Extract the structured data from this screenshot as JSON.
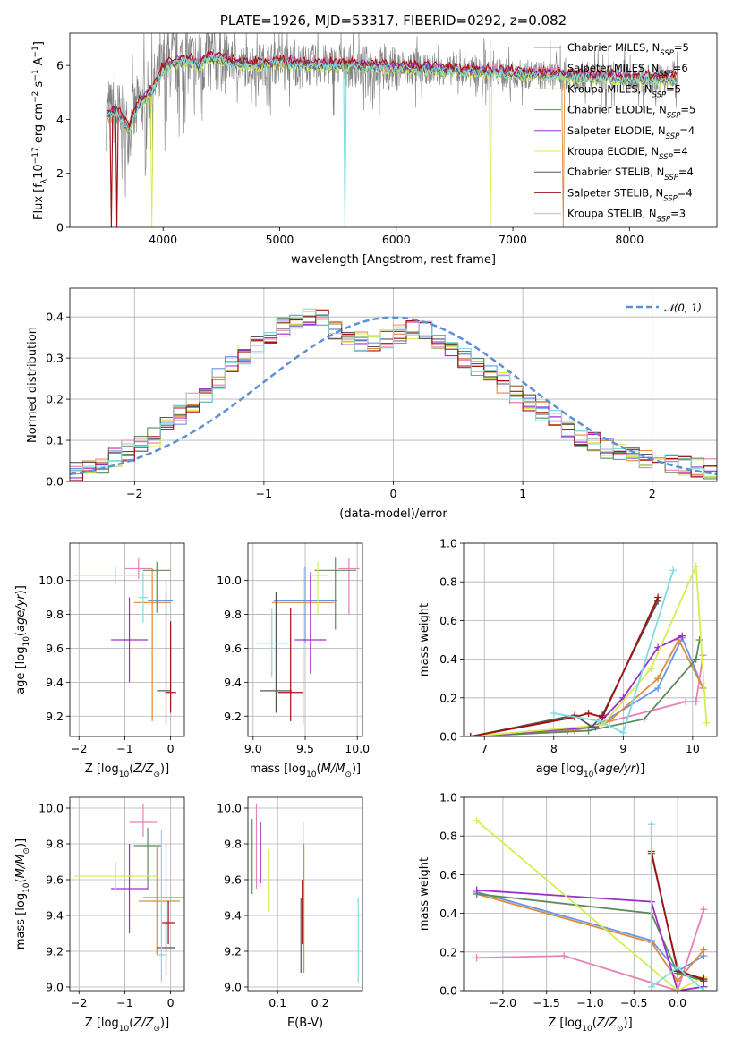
{
  "colors": {
    "blue": "#6495ed",
    "pink": "#e77fb8",
    "orange": "#e08a3c",
    "green": "#5e8a5e",
    "purple": "#9b30c9",
    "yellow": "#d6ed4f",
    "gray": "#555555",
    "red": "#a31010",
    "cyan": "#7fdde0",
    "spectrum": "#808080",
    "normal": "#5b8fd9"
  },
  "legend_labels": [
    "Chabrier MILES, N",
    "Salpeter MILES, N",
    "Kroupa MILES, N",
    "Chabrier ELODIE, N",
    "Salpeter ELODIE, N",
    "Kroupa ELODIE, N",
    "Chabrier STELIB, N",
    "Salpeter STELIB, N",
    "Kroupa STELIB, N"
  ],
  "legend_sub": "SSP",
  "legend_counts": [
    "=5",
    "=6",
    "=5",
    "=5",
    "=4",
    "=4",
    "=4",
    "=4",
    "=3"
  ],
  "chart_data": [
    {
      "type": "line",
      "title": "PLATE=1926, MJD=53317, FIBERID=0292, z=0.082",
      "xlabel": "wavelength [Angstrom, rest frame]",
      "ylabel": "Flux [fλ10⁻¹⁷ erg cm⁻² s⁻¹ A⁻¹]",
      "xlim": [
        3200,
        8750
      ],
      "ylim": [
        0,
        7.2
      ],
      "xticks": [
        4000,
        5000,
        6000,
        7000,
        8000
      ],
      "yticks": [
        0,
        2,
        4,
        6
      ],
      "grid": false,
      "legend_position": "right",
      "series_note": "observed spectrum (gray) with nine model fits",
      "continuum": {
        "x": [
          3500,
          3600,
          3700,
          3800,
          3900,
          4000,
          4100,
          4200,
          4300,
          4400,
          4500,
          4700,
          5000,
          5200,
          5500,
          6000,
          6500,
          7000,
          7500,
          8000,
          8400
        ],
        "y": [
          4.1,
          4.3,
          3.6,
          4.6,
          5.0,
          5.9,
          6.1,
          6.2,
          6.0,
          6.3,
          6.2,
          6.0,
          6.1,
          6.0,
          6.0,
          5.9,
          5.8,
          5.7,
          5.6,
          5.5,
          5.5
        ]
      }
    },
    {
      "type": "line",
      "xlabel": "(data-model)/error",
      "ylabel": "Normed distribution",
      "xlim": [
        -2.5,
        2.5
      ],
      "ylim": [
        0,
        0.47
      ],
      "xticks": [
        -2,
        -1,
        0,
        1,
        2
      ],
      "yticks": [
        0.0,
        0.1,
        0.2,
        0.3,
        0.4
      ],
      "grid": true,
      "legend_position": "top-right",
      "legend_label": "𝒩(0, 1)",
      "histogram_bins": 50,
      "histogram_center": [
        0.025,
        0.03,
        0.045,
        0.06,
        0.075,
        0.09,
        0.11,
        0.135,
        0.16,
        0.19,
        0.215,
        0.25,
        0.285,
        0.31,
        0.335,
        0.36,
        0.375,
        0.39,
        0.395,
        0.4,
        0.37,
        0.345,
        0.34,
        0.335,
        0.345,
        0.36,
        0.37,
        0.37,
        0.34,
        0.32,
        0.3,
        0.28,
        0.26,
        0.24,
        0.21,
        0.19,
        0.17,
        0.15,
        0.13,
        0.11,
        0.095,
        0.08,
        0.07,
        0.06,
        0.055,
        0.05,
        0.045,
        0.04,
        0.035,
        0.03
      ]
    },
    {
      "type": "scatter",
      "xlabel": "Z [log₁₀(Z/Z⊙)]",
      "ylabel": "age  [log₁₀(age/yr)]",
      "xlim": [
        -2.2,
        0.3
      ],
      "ylim": [
        9.08,
        10.22
      ],
      "xticks": [
        -2,
        -1,
        0
      ],
      "yticks": [
        9.2,
        9.4,
        9.6,
        9.8,
        10.0
      ],
      "grid": true,
      "points": [
        {
          "c": "blue",
          "x": -0.1,
          "xe": [
            0.4,
            0.15
          ],
          "y": 9.88,
          "ye": [
            0.1,
            0.12
          ]
        },
        {
          "c": "pink",
          "x": -0.7,
          "xe": [
            0.3,
            0.3
          ],
          "y": 10.07,
          "ye": [
            0.06,
            0.06
          ]
        },
        {
          "c": "orange",
          "x": -0.4,
          "xe": [
            0.4,
            0.4
          ],
          "y": 9.87,
          "ye": [
            0.7,
            0.2
          ]
        },
        {
          "c": "green",
          "x": -0.3,
          "xe": [
            0.3,
            0.3
          ],
          "y": 10.06,
          "ye": [
            0.25,
            0.05
          ]
        },
        {
          "c": "purple",
          "x": -0.9,
          "xe": [
            0.4,
            0.4
          ],
          "y": 9.65,
          "ye": [
            0.25,
            0.25
          ]
        },
        {
          "c": "yellow",
          "x": -1.2,
          "xe": [
            0.9,
            0.9
          ],
          "y": 10.03,
          "ye": [
            0.05,
            0.05
          ]
        },
        {
          "c": "gray",
          "x": -0.1,
          "xe": [
            0.2,
            0.1
          ],
          "y": 9.35,
          "ye": [
            0.2,
            0.58
          ]
        },
        {
          "c": "red",
          "x": 0.0,
          "xe": [
            0.12,
            0.12
          ],
          "y": 9.34,
          "ye": [
            0.12,
            0.42
          ]
        },
        {
          "c": "cyan",
          "x": -0.6,
          "xe": [
            0.1,
            0.1
          ],
          "y": 9.9,
          "ye": [
            0.15,
            0.15
          ]
        }
      ]
    },
    {
      "type": "scatter",
      "xlabel": "mass [log₁₀(M/M⊙)]",
      "xlim": [
        8.95,
        10.05
      ],
      "ylim": [
        9.08,
        10.22
      ],
      "xticks": [
        9.0,
        9.5,
        10.0
      ],
      "yticks": [
        9.2,
        9.4,
        9.6,
        9.8,
        10.0
      ],
      "grid": true,
      "points": [
        {
          "c": "blue",
          "x": 9.5,
          "xe": [
            0.3,
            0.3
          ],
          "y": 9.88,
          "ye": [
            0.25,
            0.2
          ]
        },
        {
          "c": "pink",
          "x": 9.92,
          "xe": [
            0.1,
            0.1
          ],
          "y": 10.07,
          "ye": [
            0.27,
            0.06
          ]
        },
        {
          "c": "orange",
          "x": 9.48,
          "xe": [
            0.3,
            0.3
          ],
          "y": 9.87,
          "ye": [
            0.72,
            0.2
          ]
        },
        {
          "c": "green",
          "x": 9.79,
          "xe": [
            0.2,
            0.2
          ],
          "y": 10.06,
          "ye": [
            0.35,
            0.08
          ]
        },
        {
          "c": "purple",
          "x": 9.55,
          "xe": [
            0.15,
            0.15
          ],
          "y": 9.65,
          "ye": [
            0.2,
            0.4
          ]
        },
        {
          "c": "yellow",
          "x": 9.62,
          "xe": [
            0.1,
            0.1
          ],
          "y": 10.03,
          "ye": [
            0.23,
            0.08
          ]
        },
        {
          "c": "gray",
          "x": 9.22,
          "xe": [
            0.15,
            0.15
          ],
          "y": 9.35,
          "ye": [
            0.13,
            0.58
          ]
        },
        {
          "c": "red",
          "x": 9.36,
          "xe": [
            0.12,
            0.12
          ],
          "y": 9.34,
          "ye": [
            0.17,
            0.5
          ]
        },
        {
          "c": "cyan",
          "x": 9.18,
          "xe": [
            0.15,
            0.15
          ],
          "y": 9.63,
          "ye": [
            0.2,
            0.2
          ]
        }
      ]
    },
    {
      "type": "line",
      "xlabel": "age  [log₁₀(age/yr)]",
      "ylabel": "mass weight",
      "xlim": [
        6.7,
        10.35
      ],
      "ylim": [
        0,
        1.0
      ],
      "xticks": [
        7,
        8,
        9,
        10
      ],
      "yticks": [
        0.0,
        0.2,
        0.4,
        0.6,
        0.8,
        1.0
      ],
      "grid": true,
      "series": [
        {
          "c": "blue",
          "x": [
            6.8,
            8.2,
            8.6,
            9.5,
            9.85,
            10.15
          ],
          "y": [
            0.0,
            0.03,
            0.05,
            0.25,
            0.51,
            0.25
          ]
        },
        {
          "c": "pink",
          "x": [
            6.8,
            8.5,
            9.9,
            10.05,
            10.15
          ],
          "y": [
            0.0,
            0.05,
            0.18,
            0.18,
            0.42
          ]
        },
        {
          "c": "orange",
          "x": [
            6.8,
            8.3,
            8.8,
            9.5,
            9.8,
            10.15
          ],
          "y": [
            0.0,
            0.03,
            0.08,
            0.3,
            0.5,
            0.25
          ]
        },
        {
          "c": "green",
          "x": [
            6.8,
            8.5,
            9.3,
            10.05,
            10.1
          ],
          "y": [
            0.0,
            0.03,
            0.09,
            0.4,
            0.5
          ]
        },
        {
          "c": "purple",
          "x": [
            6.8,
            8.6,
            9.0,
            9.5,
            9.85
          ],
          "y": [
            0.0,
            0.05,
            0.2,
            0.46,
            0.52
          ]
        },
        {
          "c": "yellow",
          "x": [
            6.8,
            8.7,
            9.4,
            10.05,
            10.2
          ],
          "y": [
            0.0,
            0.06,
            0.35,
            0.88,
            0.07
          ]
        },
        {
          "c": "gray",
          "x": [
            6.8,
            8.3,
            8.55,
            8.7,
            9.5
          ],
          "y": [
            0.0,
            0.11,
            0.05,
            0.11,
            0.7
          ]
        },
        {
          "c": "red",
          "x": [
            6.8,
            8.3,
            8.5,
            8.7,
            9.5
          ],
          "y": [
            0.0,
            0.1,
            0.12,
            0.1,
            0.72
          ]
        },
        {
          "c": "cyan",
          "x": [
            8.0,
            8.65,
            9.0,
            9.72
          ],
          "y": [
            0.12,
            0.08,
            0.02,
            0.86
          ]
        }
      ]
    },
    {
      "type": "scatter",
      "xlabel": "Z [log₁₀(Z/Z⊙)]",
      "ylabel": "mass [log₁₀(M/M⊙)]",
      "xlim": [
        -2.2,
        0.3
      ],
      "ylim": [
        8.98,
        10.06
      ],
      "xticks": [
        -2,
        -1,
        0
      ],
      "yticks": [
        9.0,
        9.2,
        9.4,
        9.6,
        9.8,
        10.0
      ],
      "grid": true,
      "points": [
        {
          "c": "blue",
          "x": -0.1,
          "xe": [
            0.5,
            0.4
          ],
          "y": 9.5,
          "ye": [
            0.3,
            0.3
          ]
        },
        {
          "c": "pink",
          "x": -0.6,
          "xe": [
            0.3,
            0.3
          ],
          "y": 9.92,
          "ye": [
            0.08,
            0.1
          ]
        },
        {
          "c": "orange",
          "x": -0.3,
          "xe": [
            0.4,
            0.5
          ],
          "y": 9.48,
          "ye": [
            0.3,
            0.3
          ]
        },
        {
          "c": "green",
          "x": -0.5,
          "xe": [
            0.3,
            0.3
          ],
          "y": 9.79,
          "ye": [
            0.25,
            0.1
          ]
        },
        {
          "c": "purple",
          "x": -0.9,
          "xe": [
            0.4,
            0.4
          ],
          "y": 9.55,
          "ye": [
            0.25,
            0.25
          ]
        },
        {
          "c": "yellow",
          "x": -1.2,
          "xe": [
            0.9,
            0.9
          ],
          "y": 9.62,
          "ye": [
            0.08,
            0.08
          ]
        },
        {
          "c": "gray",
          "x": -0.1,
          "xe": [
            0.2,
            0.2
          ],
          "y": 9.22,
          "ye": [
            0.15,
            0.15
          ]
        },
        {
          "c": "red",
          "x": -0.05,
          "xe": [
            0.15,
            0.15
          ],
          "y": 9.36,
          "ye": [
            0.12,
            0.12
          ]
        },
        {
          "c": "cyan",
          "x": -0.2,
          "xe": [
            0.1,
            0.1
          ],
          "y": 9.18,
          "ye": [
            0.15,
            0.7
          ]
        }
      ]
    },
    {
      "type": "scatter",
      "xlabel": "E(B-V)",
      "xlim": [
        0.03,
        0.3
      ],
      "ylim": [
        8.98,
        10.06
      ],
      "xticks": [
        0.1,
        0.2
      ],
      "yticks": [
        9.0,
        9.2,
        9.4,
        9.6,
        9.8,
        10.0
      ],
      "grid": true,
      "points": [
        {
          "c": "blue",
          "x": 0.16,
          "ye": [
            9.28,
            9.92
          ]
        },
        {
          "c": "pink",
          "x": 0.05,
          "ye": [
            9.55,
            10.02
          ]
        },
        {
          "c": "orange",
          "x": 0.162,
          "ye": [
            9.08,
            9.8
          ]
        },
        {
          "c": "green",
          "x": 0.04,
          "ye": [
            9.52,
            9.94
          ]
        },
        {
          "c": "purple",
          "x": 0.06,
          "ye": [
            9.58,
            9.92
          ]
        },
        {
          "c": "yellow",
          "x": 0.08,
          "ye": [
            9.42,
            9.77
          ]
        },
        {
          "c": "gray",
          "x": 0.155,
          "ye": [
            9.08,
            9.5
          ]
        },
        {
          "c": "red",
          "x": 0.158,
          "ye": [
            9.24,
            9.6
          ]
        },
        {
          "c": "cyan",
          "x": 0.29,
          "ye": [
            9.02,
            9.5
          ]
        }
      ]
    },
    {
      "type": "line",
      "xlabel": "Z [log₁₀(Z/Z⊙)]",
      "ylabel": "mass weight",
      "xlim": [
        -2.45,
        0.45
      ],
      "ylim": [
        0,
        1.0
      ],
      "xticks": [
        -2.0,
        -1.5,
        -1.0,
        -0.5,
        0.0
      ],
      "yticks": [
        0.0,
        0.2,
        0.4,
        0.6,
        0.8,
        1.0
      ],
      "grid": true,
      "series": [
        {
          "c": "blue",
          "x": [
            -2.3,
            -0.3,
            0.0,
            0.3
          ],
          "y": [
            0.51,
            0.26,
            0.1,
            0.18
          ]
        },
        {
          "c": "pink",
          "x": [
            -2.3,
            -1.3,
            0.0,
            0.3
          ],
          "y": [
            0.17,
            0.18,
            0.0,
            0.42
          ]
        },
        {
          "c": "orange",
          "x": [
            -2.3,
            -0.3,
            0.0,
            0.3
          ],
          "y": [
            0.5,
            0.25,
            0.05,
            0.21
          ]
        },
        {
          "c": "green",
          "x": [
            -2.3,
            -0.3,
            0.0,
            0.3
          ],
          "y": [
            0.5,
            0.4,
            0.09,
            0.05
          ]
        },
        {
          "c": "purple",
          "x": [
            -2.3,
            -0.3,
            0.0,
            0.3
          ],
          "y": [
            0.52,
            0.46,
            0.0,
            0.02
          ]
        },
        {
          "c": "yellow",
          "x": [
            -2.3,
            0.0,
            0.3
          ],
          "y": [
            0.88,
            0.0,
            0.07
          ]
        },
        {
          "c": "gray",
          "x": [
            -0.3,
            0.0,
            0.3
          ],
          "y": [
            0.71,
            0.11,
            0.05
          ]
        },
        {
          "c": "red",
          "x": [
            -0.3,
            0.0,
            0.3
          ],
          "y": [
            0.72,
            0.1,
            0.06
          ]
        },
        {
          "c": "cyan",
          "x": [
            -0.3,
            -0.3,
            0.0,
            0.3
          ],
          "y": [
            0.86,
            0.02,
            0.12,
            0.0
          ]
        }
      ]
    }
  ]
}
